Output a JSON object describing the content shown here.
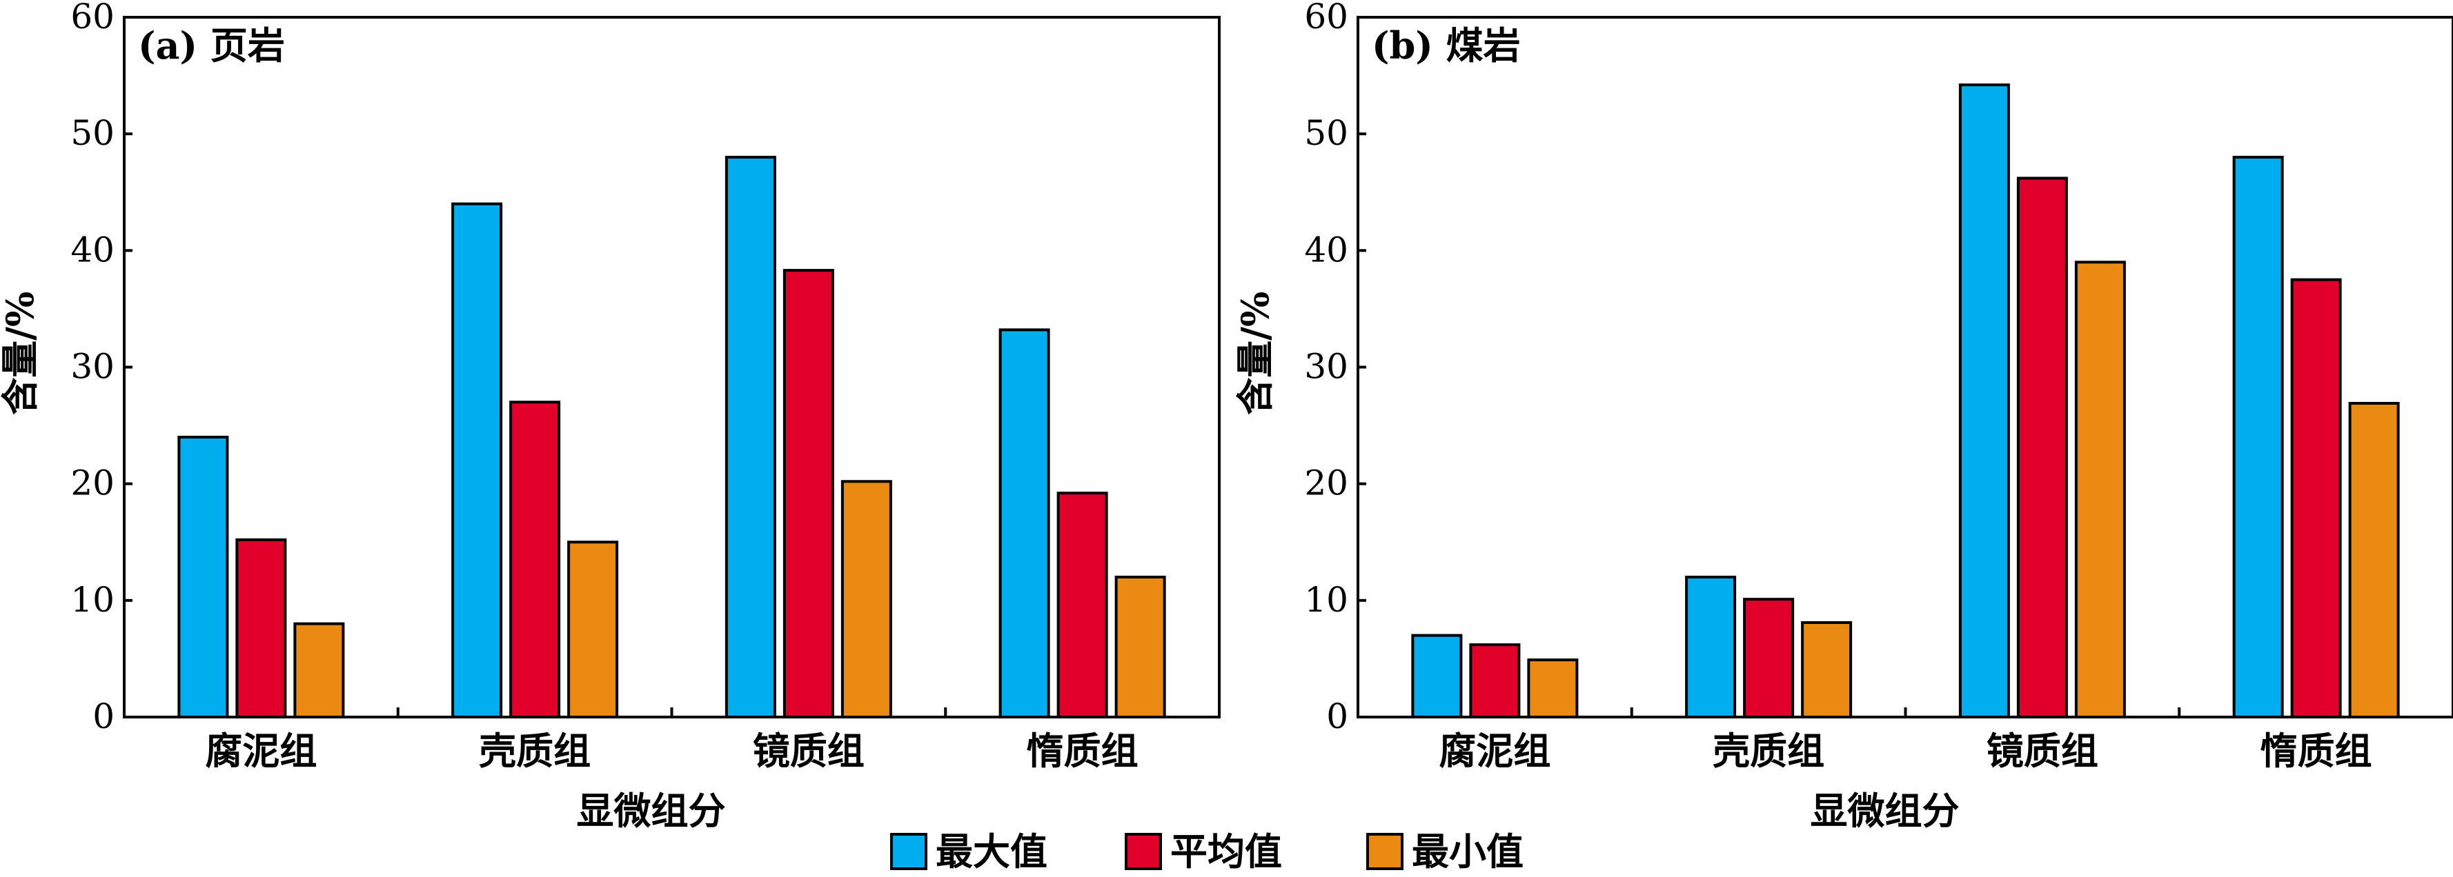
{
  "chart_data": [
    {
      "type": "bar",
      "panel_label": "(a) 页岩",
      "categories": [
        "腐泥组",
        "壳质组",
        "镜质组",
        "惰质组"
      ],
      "series": [
        {
          "name": "最大值",
          "values": [
            24,
            44,
            48,
            33.2
          ]
        },
        {
          "name": "平均值",
          "values": [
            15.2,
            27,
            38.3,
            19.2
          ]
        },
        {
          "name": "最小值",
          "values": [
            8,
            15,
            20.2,
            12
          ]
        }
      ],
      "xlabel": "显微组分",
      "ylabel": "含量/%",
      "ylim": [
        0,
        60
      ],
      "yticks": [
        0,
        10,
        20,
        30,
        40,
        50,
        60
      ],
      "grid": false
    },
    {
      "type": "bar",
      "panel_label": "(b) 煤岩",
      "categories": [
        "腐泥组",
        "壳质组",
        "镜质组",
        "惰质组"
      ],
      "series": [
        {
          "name": "最大值",
          "values": [
            7,
            12,
            54.2,
            48
          ]
        },
        {
          "name": "平均值",
          "values": [
            6.2,
            10.1,
            46.2,
            37.5
          ]
        },
        {
          "name": "最小值",
          "values": [
            4.9,
            8.1,
            39,
            26.9
          ]
        }
      ],
      "xlabel": "显微组分",
      "ylabel": "含量/%",
      "ylim": [
        0,
        60
      ],
      "yticks": [
        0,
        10,
        20,
        30,
        40,
        50,
        60
      ],
      "grid": false
    }
  ],
  "legend": {
    "position": "bottom-center",
    "items": [
      {
        "label": "最大值",
        "color": "#00AEEF"
      },
      {
        "label": "平均值",
        "color": "#E1002A"
      },
      {
        "label": "最小值",
        "color": "#EA8A12"
      }
    ]
  }
}
